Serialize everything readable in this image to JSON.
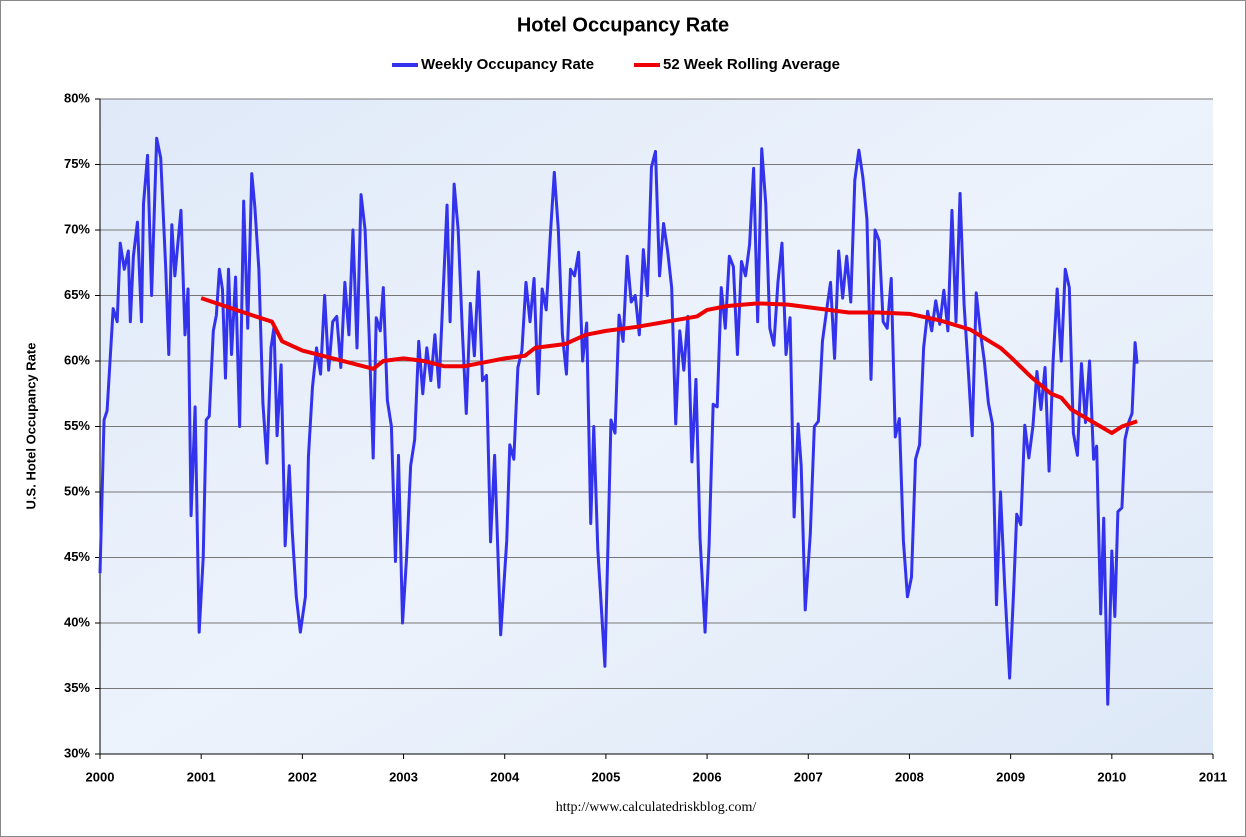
{
  "chart_data": {
    "type": "line",
    "title": "Hotel Occupancy Rate",
    "ylabel": "U.S. Hotel Occupancy Rate",
    "source": "http://www.calculatedriskblog.com/",
    "xlim": [
      2000,
      2011
    ],
    "xticks": [
      2000,
      2001,
      2002,
      2003,
      2004,
      2005,
      2006,
      2007,
      2008,
      2009,
      2010,
      2011
    ],
    "ylim": [
      30,
      80
    ],
    "yticks": [
      {
        "value": 30,
        "label": "30%"
      },
      {
        "value": 35,
        "label": "35%"
      },
      {
        "value": 40,
        "label": "40%"
      },
      {
        "value": 45,
        "label": "45%"
      },
      {
        "value": 50,
        "label": "50%"
      },
      {
        "value": 55,
        "label": "55%"
      },
      {
        "value": 60,
        "label": "60%"
      },
      {
        "value": 65,
        "label": "65%"
      },
      {
        "value": 70,
        "label": "70%"
      },
      {
        "value": 75,
        "label": "75%"
      },
      {
        "value": 80,
        "label": "80%"
      }
    ],
    "grid": true,
    "legend": "top",
    "series": [
      {
        "name": "Weekly Occupancy Rate",
        "color": "#3333ee",
        "x": [
          2000,
          2000.04,
          2000.07,
          2000.13,
          2000.17,
          2000.2,
          2000.24,
          2000.28,
          2000.3,
          2000.33,
          2000.37,
          2000.41,
          2000.43,
          2000.47,
          2000.51,
          2000.56,
          2000.6,
          2000.65,
          2000.68,
          2000.71,
          2000.74,
          2000.8,
          2000.84,
          2000.87,
          2000.9,
          2000.94,
          2000.98,
          2001.02,
          2001.05,
          2001.08,
          2001.12,
          2001.15,
          2001.18,
          2001.21,
          2001.24,
          2001.27,
          2001.3,
          2001.34,
          2001.38,
          2001.42,
          2001.46,
          2001.5,
          2001.53,
          2001.57,
          2001.61,
          2001.65,
          2001.69,
          2001.72,
          2001.75,
          2001.79,
          2001.83,
          2001.87,
          2001.9,
          2001.94,
          2001.98,
          2002.03,
          2002.06,
          2002.1,
          2002.14,
          2002.18,
          2002.22,
          2002.26,
          2002.3,
          2002.34,
          2002.38,
          2002.42,
          2002.46,
          2002.5,
          2002.54,
          2002.58,
          2002.62,
          2002.66,
          2002.7,
          2002.73,
          2002.77,
          2002.8,
          2002.84,
          2002.88,
          2002.92,
          2002.95,
          2002.99,
          2003.03,
          2003.07,
          2003.11,
          2003.15,
          2003.19,
          2003.23,
          2003.27,
          2003.31,
          2003.35,
          2003.39,
          2003.43,
          2003.46,
          2003.5,
          2003.54,
          2003.58,
          2003.62,
          2003.66,
          2003.7,
          2003.74,
          2003.78,
          2003.82,
          2003.86,
          2003.9,
          2003.96,
          2004.02,
          2004.05,
          2004.09,
          2004.13,
          2004.17,
          2004.21,
          2004.25,
          2004.29,
          2004.33,
          2004.37,
          2004.41,
          2004.45,
          2004.49,
          2004.53,
          2004.57,
          2004.61,
          2004.65,
          2004.69,
          2004.73,
          2004.77,
          2004.81,
          2004.85,
          2004.88,
          2004.92,
          2004.99,
          2005.02,
          2005.05,
          2005.09,
          2005.13,
          2005.17,
          2005.21,
          2005.25,
          2005.29,
          2005.33,
          2005.37,
          2005.41,
          2005.45,
          2005.49,
          2005.53,
          2005.57,
          2005.61,
          2005.65,
          2005.69,
          2005.73,
          2005.77,
          2005.81,
          2005.85,
          2005.89,
          2005.93,
          2005.98,
          2006.02,
          2006.06,
          2006.1,
          2006.14,
          2006.18,
          2006.22,
          2006.26,
          2006.3,
          2006.34,
          2006.38,
          2006.42,
          2006.46,
          2006.5,
          2006.54,
          2006.58,
          2006.62,
          2006.66,
          2006.7,
          2006.74,
          2006.78,
          2006.82,
          2006.86,
          2006.9,
          2006.93,
          2006.97,
          2007.02,
          2007.06,
          2007.1,
          2007.14,
          2007.18,
          2007.22,
          2007.26,
          2007.3,
          2007.34,
          2007.38,
          2007.42,
          2007.46,
          2007.5,
          2007.54,
          2007.58,
          2007.62,
          2007.66,
          2007.7,
          2007.74,
          2007.78,
          2007.82,
          2007.86,
          2007.9,
          2007.94,
          2007.98,
          2008.02,
          2008.06,
          2008.1,
          2008.14,
          2008.18,
          2008.22,
          2008.26,
          2008.3,
          2008.34,
          2008.38,
          2008.42,
          2008.46,
          2008.5,
          2008.54,
          2008.58,
          2008.62,
          2008.66,
          2008.7,
          2008.74,
          2008.78,
          2008.82,
          2008.86,
          2008.9,
          2008.94,
          2008.99,
          2009.03,
          2009.06,
          2009.1,
          2009.14,
          2009.18,
          2009.22,
          2009.26,
          2009.3,
          2009.34,
          2009.38,
          2009.42,
          2009.46,
          2009.5,
          2009.54,
          2009.58,
          2009.62,
          2009.66,
          2009.7,
          2009.74,
          2009.78,
          2009.82,
          2009.85,
          2009.89,
          2009.92,
          2009.96,
          2010,
          2010.03,
          2010.06,
          2010.1,
          2010.13,
          2010.17,
          2010.2,
          2010.23,
          2010.25
        ],
        "values": [
          43.8,
          55.5,
          56.2,
          64,
          63,
          69,
          67,
          68.4,
          63,
          68,
          70.6,
          63,
          72,
          75.7,
          65,
          77,
          75.5,
          67,
          60.5,
          70.4,
          66.5,
          71.5,
          62,
          65.5,
          48.2,
          56.5,
          39.3,
          45,
          55.5,
          55.8,
          62.3,
          63.5,
          67,
          65.5,
          58.7,
          67,
          60.5,
          66.4,
          55,
          72.2,
          62.5,
          74.3,
          71.8,
          67,
          56.8,
          52.2,
          61,
          62.6,
          54.3,
          59.7,
          45.9,
          52,
          47,
          42,
          39.3,
          42,
          52.7,
          58,
          61,
          59,
          65,
          59.3,
          63,
          63.4,
          59.5,
          66,
          62,
          70,
          61,
          72.7,
          70,
          62,
          52.6,
          63.3,
          62.3,
          65.6,
          57,
          55,
          44.7,
          52.8,
          40,
          45,
          52,
          54,
          61.5,
          57.5,
          61,
          58.5,
          62,
          58,
          65,
          71.9,
          63,
          73.5,
          70,
          62.5,
          56,
          64.4,
          60.4,
          66.8,
          58.5,
          58.9,
          46.2,
          52.8,
          39.1,
          46.3,
          53.6,
          52.5,
          59.5,
          60.8,
          66,
          63,
          66.3,
          57.5,
          65.5,
          63.9,
          69.5,
          74.4,
          70,
          62,
          59,
          67,
          66.5,
          68.3,
          60,
          62.9,
          47.6,
          55,
          45.6,
          36.7,
          45.8,
          55.5,
          54.5,
          63.5,
          61.5,
          68,
          64.5,
          65,
          62,
          68.5,
          65,
          74.8,
          76,
          66.5,
          70.5,
          68.4,
          65.6,
          55.2,
          62.3,
          59.3,
          63.4,
          52.3,
          58.6,
          46.5,
          39.3,
          46,
          56.7,
          56.5,
          65.6,
          62.5,
          68,
          67.2,
          60.5,
          67.6,
          66.5,
          68.9,
          74.7,
          63,
          76.2,
          72,
          62.5,
          61.2,
          66,
          69,
          60.5,
          63.3,
          48.1,
          55.2,
          52,
          41,
          46.8,
          55,
          55.4,
          61.5,
          63.8,
          66,
          60.2,
          68.4,
          64.8,
          68,
          64.5,
          73.8,
          76.1,
          74,
          70.8,
          58.6,
          70,
          69.2,
          63,
          62.5,
          66.3,
          54.2,
          55.6,
          46.3,
          42,
          43.5,
          52.5,
          53.6,
          61,
          63.8,
          62.3,
          64.6,
          62.8,
          65.4,
          62.3,
          71.5,
          63,
          72.8,
          64.3,
          59.5,
          54.3,
          65.2,
          62.3,
          60,
          56.8,
          55.2,
          41.4,
          50,
          43,
          35.8,
          42.5,
          48.3,
          47.5,
          55.1,
          52.6,
          55,
          59.2,
          56.3,
          59.5,
          51.6,
          60,
          65.5,
          60,
          67,
          65.6,
          54.5,
          52.8,
          59.8,
          55.3,
          60,
          52.5,
          53.5,
          40.7,
          48,
          33.8,
          45.5,
          40.5,
          48.5,
          48.8,
          54,
          55.4,
          56,
          61.4,
          59.8
        ]
      },
      {
        "name": "52 Week Rolling Average",
        "color": "#ee0000",
        "x": [
          2001,
          2001.5,
          2001.7,
          2001.8,
          2002,
          2002.5,
          2002.7,
          2002.8,
          2003,
          2003.2,
          2003.4,
          2003.6,
          2003.8,
          2004,
          2004.2,
          2004.3,
          2004.6,
          2004.8,
          2005,
          2005.3,
          2005.6,
          2005.9,
          2006,
          2006.2,
          2006.5,
          2006.8,
          2007,
          2007.2,
          2007.4,
          2007.7,
          2008,
          2008.3,
          2008.6,
          2008.9,
          2009,
          2009.2,
          2009.4,
          2009.5,
          2009.6,
          2009.8,
          2010,
          2010.1,
          2010.25
        ],
        "values": [
          64.8,
          63.5,
          63,
          61.5,
          60.8,
          59.8,
          59.4,
          60,
          60.2,
          60,
          59.6,
          59.6,
          59.9,
          60.2,
          60.4,
          61,
          61.3,
          62,
          62.3,
          62.6,
          63,
          63.4,
          63.9,
          64.2,
          64.4,
          64.3,
          64.1,
          63.9,
          63.7,
          63.7,
          63.6,
          63.1,
          62.4,
          61,
          60.3,
          58.8,
          57.5,
          57.2,
          56.3,
          55.4,
          54.5,
          55,
          55.4
        ]
      }
    ]
  }
}
